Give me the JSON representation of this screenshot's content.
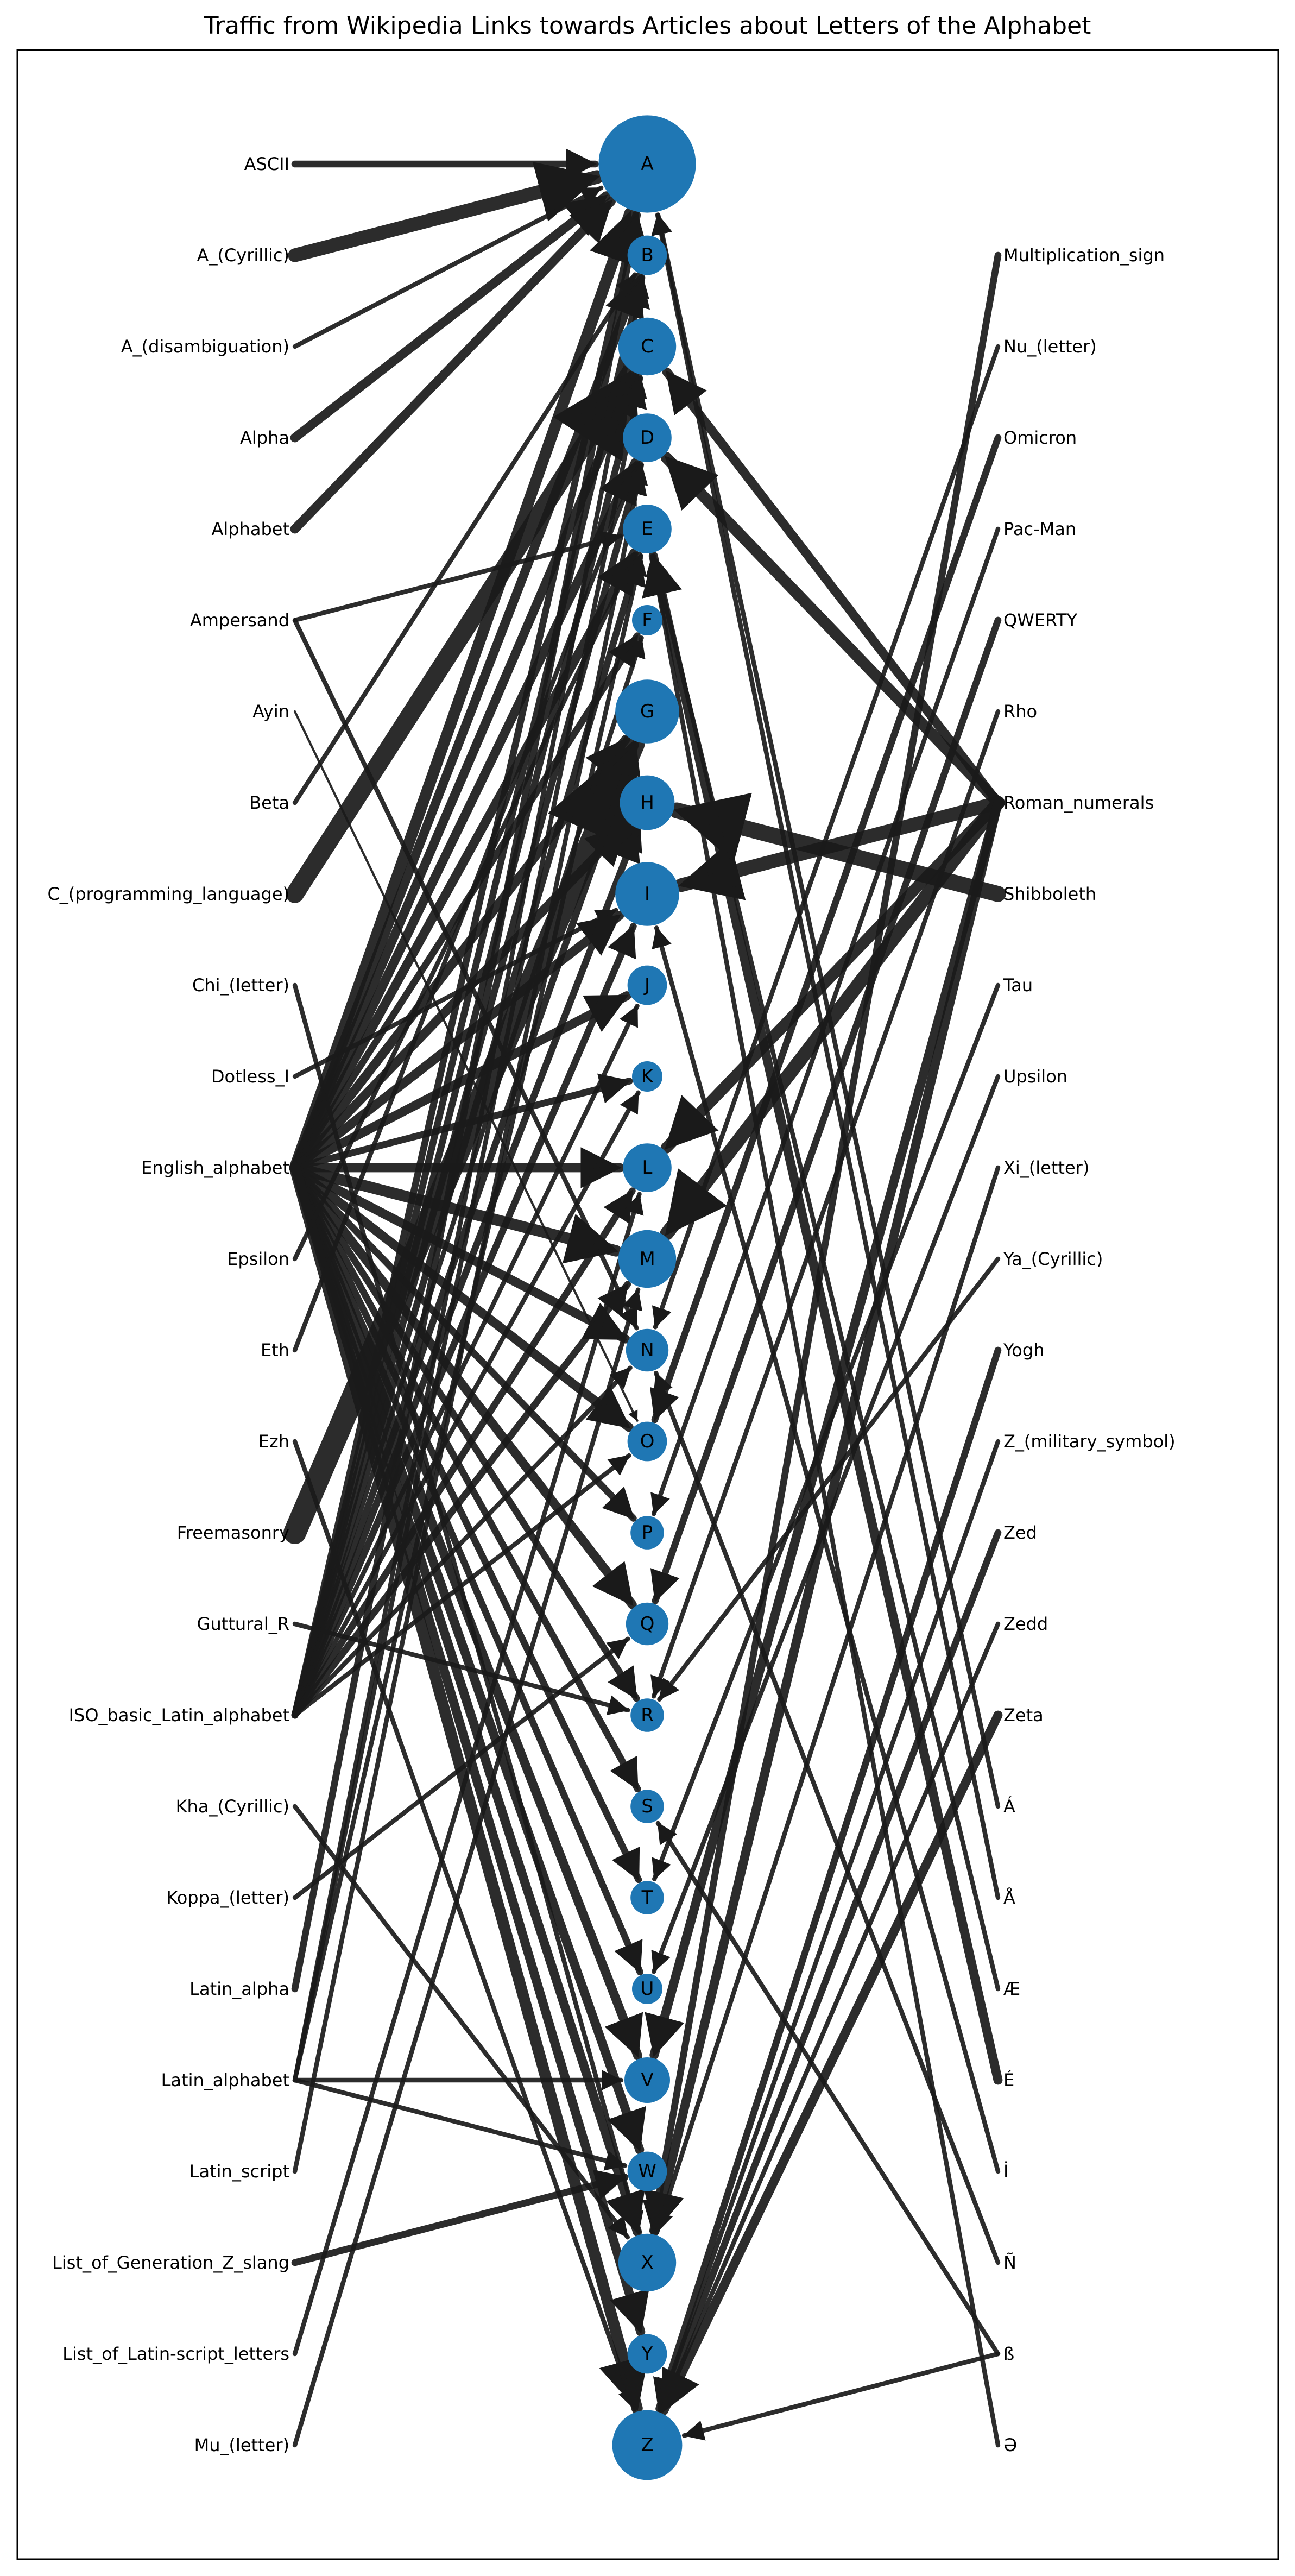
{
  "title": "Traffic from Wikipedia Links towards Articles about Letters of the Alphabet",
  "colors": {
    "node": "#1f77b4",
    "edge": "#1a1a1a",
    "frame": "#000000",
    "background": "#ffffff"
  },
  "letters": [
    {
      "id": "A",
      "size": 3.2
    },
    {
      "id": "B",
      "size": 1.3
    },
    {
      "id": "C",
      "size": 1.9
    },
    {
      "id": "D",
      "size": 1.6
    },
    {
      "id": "E",
      "size": 1.6
    },
    {
      "id": "F",
      "size": 1.0
    },
    {
      "id": "G",
      "size": 2.1
    },
    {
      "id": "H",
      "size": 1.8
    },
    {
      "id": "I",
      "size": 2.1
    },
    {
      "id": "J",
      "size": 1.3
    },
    {
      "id": "K",
      "size": 1.0
    },
    {
      "id": "L",
      "size": 1.6
    },
    {
      "id": "M",
      "size": 1.9
    },
    {
      "id": "N",
      "size": 1.4
    },
    {
      "id": "O",
      "size": 1.3
    },
    {
      "id": "P",
      "size": 1.1
    },
    {
      "id": "Q",
      "size": 1.4
    },
    {
      "id": "R",
      "size": 1.1
    },
    {
      "id": "S",
      "size": 1.1
    },
    {
      "id": "T",
      "size": 1.1
    },
    {
      "id": "U",
      "size": 1.0
    },
    {
      "id": "V",
      "size": 1.5
    },
    {
      "id": "W",
      "size": 1.3
    },
    {
      "id": "X",
      "size": 1.9
    },
    {
      "id": "Y",
      "size": 1.3
    },
    {
      "id": "Z",
      "size": 2.3
    }
  ],
  "left_sources": [
    "ASCII",
    "A_(Cyrillic)",
    "A_(disambiguation)",
    "Alpha",
    "Alphabet",
    "Ampersand",
    "Ayin",
    "Beta",
    "C_(programming_language)",
    "Chi_(letter)",
    "Dotless_I",
    "English_alphabet",
    "Epsilon",
    "Eth",
    "Ezh",
    "Freemasonry",
    "Guttural_R",
    "ISO_basic_Latin_alphabet",
    "Kha_(Cyrillic)",
    "Koppa_(letter)",
    "Latin_alpha",
    "Latin_alphabet",
    "Latin_script",
    "List_of_Generation_Z_slang",
    "List_of_Latin-script_letters",
    "Mu_(letter)"
  ],
  "right_sources": [
    "Multiplication_sign",
    "Nu_(letter)",
    "Omicron",
    "Pac-Man",
    "QWERTY",
    "Rho",
    "Roman_numerals",
    "Shibboleth",
    "Tau",
    "Upsilon",
    "Xi_(letter)",
    "Ya_(Cyrillic)",
    "Yogh",
    "Z_(military_symbol)",
    "Zed",
    "Zedd",
    "Zeta",
    "Á",
    "Å",
    "Æ",
    "É",
    "İ",
    "Ñ",
    "ß",
    "Ə"
  ],
  "edges": [
    {
      "from": "ASCII",
      "to": "A",
      "weight": 3
    },
    {
      "from": "A_(Cyrillic)",
      "to": "A",
      "weight": 6
    },
    {
      "from": "A_(disambiguation)",
      "to": "A",
      "weight": 2
    },
    {
      "from": "Alpha",
      "to": "A",
      "weight": 4
    },
    {
      "from": "Alphabet",
      "to": "A",
      "weight": 4
    },
    {
      "from": "Ampersand",
      "to": "E",
      "weight": 2
    },
    {
      "from": "Ampersand",
      "to": "N",
      "weight": 2
    },
    {
      "from": "Ayin",
      "to": "O",
      "weight": 1
    },
    {
      "from": "Beta",
      "to": "B",
      "weight": 2
    },
    {
      "from": "C_(programming_language)",
      "to": "C",
      "weight": 8
    },
    {
      "from": "Chi_(letter)",
      "to": "X",
      "weight": 2
    },
    {
      "from": "Dotless_I",
      "to": "I",
      "weight": 2
    },
    {
      "from": "English_alphabet",
      "to": "A",
      "weight": 5
    },
    {
      "from": "English_alphabet",
      "to": "B",
      "weight": 4
    },
    {
      "from": "English_alphabet",
      "to": "C",
      "weight": 4
    },
    {
      "from": "English_alphabet",
      "to": "D",
      "weight": 4
    },
    {
      "from": "English_alphabet",
      "to": "E",
      "weight": 4
    },
    {
      "from": "English_alphabet",
      "to": "F",
      "weight": 3
    },
    {
      "from": "English_alphabet",
      "to": "G",
      "weight": 4
    },
    {
      "from": "English_alphabet",
      "to": "H",
      "weight": 4
    },
    {
      "from": "English_alphabet",
      "to": "I",
      "weight": 4
    },
    {
      "from": "English_alphabet",
      "to": "J",
      "weight": 4
    },
    {
      "from": "English_alphabet",
      "to": "K",
      "weight": 3
    },
    {
      "from": "English_alphabet",
      "to": "L",
      "weight": 4
    },
    {
      "from": "English_alphabet",
      "to": "M",
      "weight": 5
    },
    {
      "from": "English_alphabet",
      "to": "N",
      "weight": 4
    },
    {
      "from": "English_alphabet",
      "to": "O",
      "weight": 4
    },
    {
      "from": "English_alphabet",
      "to": "P",
      "weight": 3
    },
    {
      "from": "English_alphabet",
      "to": "Q",
      "weight": 4
    },
    {
      "from": "English_alphabet",
      "to": "R",
      "weight": 3
    },
    {
      "from": "English_alphabet",
      "to": "S",
      "weight": 3
    },
    {
      "from": "English_alphabet",
      "to": "T",
      "weight": 3
    },
    {
      "from": "English_alphabet",
      "to": "U",
      "weight": 3
    },
    {
      "from": "English_alphabet",
      "to": "V",
      "weight": 4
    },
    {
      "from": "English_alphabet",
      "to": "W",
      "weight": 4
    },
    {
      "from": "English_alphabet",
      "to": "X",
      "weight": 4
    },
    {
      "from": "English_alphabet",
      "to": "Y",
      "weight": 4
    },
    {
      "from": "English_alphabet",
      "to": "Z",
      "weight": 5
    },
    {
      "from": "Epsilon",
      "to": "E",
      "weight": 2
    },
    {
      "from": "Eth",
      "to": "D",
      "weight": 2
    },
    {
      "from": "Ezh",
      "to": "Z",
      "weight": 2
    },
    {
      "from": "Freemasonry",
      "to": "G",
      "weight": 10
    },
    {
      "from": "Guttural_R",
      "to": "R",
      "weight": 2
    },
    {
      "from": "ISO_basic_Latin_alphabet",
      "to": "A",
      "weight": 3
    },
    {
      "from": "ISO_basic_Latin_alphabet",
      "to": "B",
      "weight": 3
    },
    {
      "from": "ISO_basic_Latin_alphabet",
      "to": "C",
      "weight": 3
    },
    {
      "from": "ISO_basic_Latin_alphabet",
      "to": "D",
      "weight": 3
    },
    {
      "from": "ISO_basic_Latin_alphabet",
      "to": "E",
      "weight": 3
    },
    {
      "from": "ISO_basic_Latin_alphabet",
      "to": "F",
      "weight": 2
    },
    {
      "from": "ISO_basic_Latin_alphabet",
      "to": "G",
      "weight": 3
    },
    {
      "from": "ISO_basic_Latin_alphabet",
      "to": "H",
      "weight": 3
    },
    {
      "from": "ISO_basic_Latin_alphabet",
      "to": "I",
      "weight": 3
    },
    {
      "from": "ISO_basic_Latin_alphabet",
      "to": "J",
      "weight": 2
    },
    {
      "from": "ISO_basic_Latin_alphabet",
      "to": "K",
      "weight": 2
    },
    {
      "from": "ISO_basic_Latin_alphabet",
      "to": "L",
      "weight": 3
    },
    {
      "from": "ISO_basic_Latin_alphabet",
      "to": "M",
      "weight": 3
    },
    {
      "from": "ISO_basic_Latin_alphabet",
      "to": "N",
      "weight": 2
    },
    {
      "from": "ISO_basic_Latin_alphabet",
      "to": "O",
      "weight": 2
    },
    {
      "from": "Kha_(Cyrillic)",
      "to": "X",
      "weight": 2
    },
    {
      "from": "Koppa_(letter)",
      "to": "Q",
      "weight": 2
    },
    {
      "from": "Latin_alpha",
      "to": "A",
      "weight": 3
    },
    {
      "from": "Latin_alphabet",
      "to": "V",
      "weight": 2
    },
    {
      "from": "Latin_alphabet",
      "to": "W",
      "weight": 2
    },
    {
      "from": "Latin_alphabet",
      "to": "B",
      "weight": 2
    },
    {
      "from": "Latin_alphabet",
      "to": "C",
      "weight": 2
    },
    {
      "from": "Latin_alphabet",
      "to": "E",
      "weight": 2
    },
    {
      "from": "Latin_script",
      "to": "D",
      "weight": 2
    },
    {
      "from": "List_of_Generation_Z_slang",
      "to": "W",
      "weight": 3
    },
    {
      "from": "List_of_Latin-script_letters",
      "to": "L",
      "weight": 2
    },
    {
      "from": "Mu_(letter)",
      "to": "M",
      "weight": 2
    },
    {
      "from": "Multiplication_sign",
      "to": "X",
      "weight": 3
    },
    {
      "from": "Nu_(letter)",
      "to": "N",
      "weight": 2
    },
    {
      "from": "Omicron",
      "to": "O",
      "weight": 3
    },
    {
      "from": "Pac-Man",
      "to": "P",
      "weight": 2
    },
    {
      "from": "QWERTY",
      "to": "Q",
      "weight": 3
    },
    {
      "from": "Rho",
      "to": "R",
      "weight": 2
    },
    {
      "from": "Roman_numerals",
      "to": "C",
      "weight": 4
    },
    {
      "from": "Roman_numerals",
      "to": "D",
      "weight": 5
    },
    {
      "from": "Roman_numerals",
      "to": "I",
      "weight": 6
    },
    {
      "from": "Roman_numerals",
      "to": "L",
      "weight": 5
    },
    {
      "from": "Roman_numerals",
      "to": "M",
      "weight": 6
    },
    {
      "from": "Roman_numerals",
      "to": "V",
      "weight": 4
    },
    {
      "from": "Roman_numerals",
      "to": "X",
      "weight": 4
    },
    {
      "from": "Shibboleth",
      "to": "H",
      "weight": 7
    },
    {
      "from": "Tau",
      "to": "T",
      "weight": 2
    },
    {
      "from": "Upsilon",
      "to": "U",
      "weight": 2
    },
    {
      "from": "Xi_(letter)",
      "to": "X",
      "weight": 2
    },
    {
      "from": "Ya_(Cyrillic)",
      "to": "R",
      "weight": 2
    },
    {
      "from": "Yogh",
      "to": "Z",
      "weight": 3
    },
    {
      "from": "Z_(military_symbol)",
      "to": "Z",
      "weight": 2
    },
    {
      "from": "Zed",
      "to": "Z",
      "weight": 3
    },
    {
      "from": "Zedd",
      "to": "Z",
      "weight": 2
    },
    {
      "from": "Zeta",
      "to": "Z",
      "weight": 4
    },
    {
      "from": "Á",
      "to": "A",
      "weight": 2
    },
    {
      "from": "Å",
      "to": "A",
      "weight": 2
    },
    {
      "from": "Æ",
      "to": "E",
      "weight": 2
    },
    {
      "from": "É",
      "to": "E",
      "weight": 4
    },
    {
      "from": "İ",
      "to": "I",
      "weight": 2
    },
    {
      "from": "Ñ",
      "to": "N",
      "weight": 2
    },
    {
      "from": "ß",
      "to": "S",
      "weight": 2
    },
    {
      "from": "ß",
      "to": "Z",
      "weight": 2
    },
    {
      "from": "Ə",
      "to": "E",
      "weight": 2
    }
  ]
}
